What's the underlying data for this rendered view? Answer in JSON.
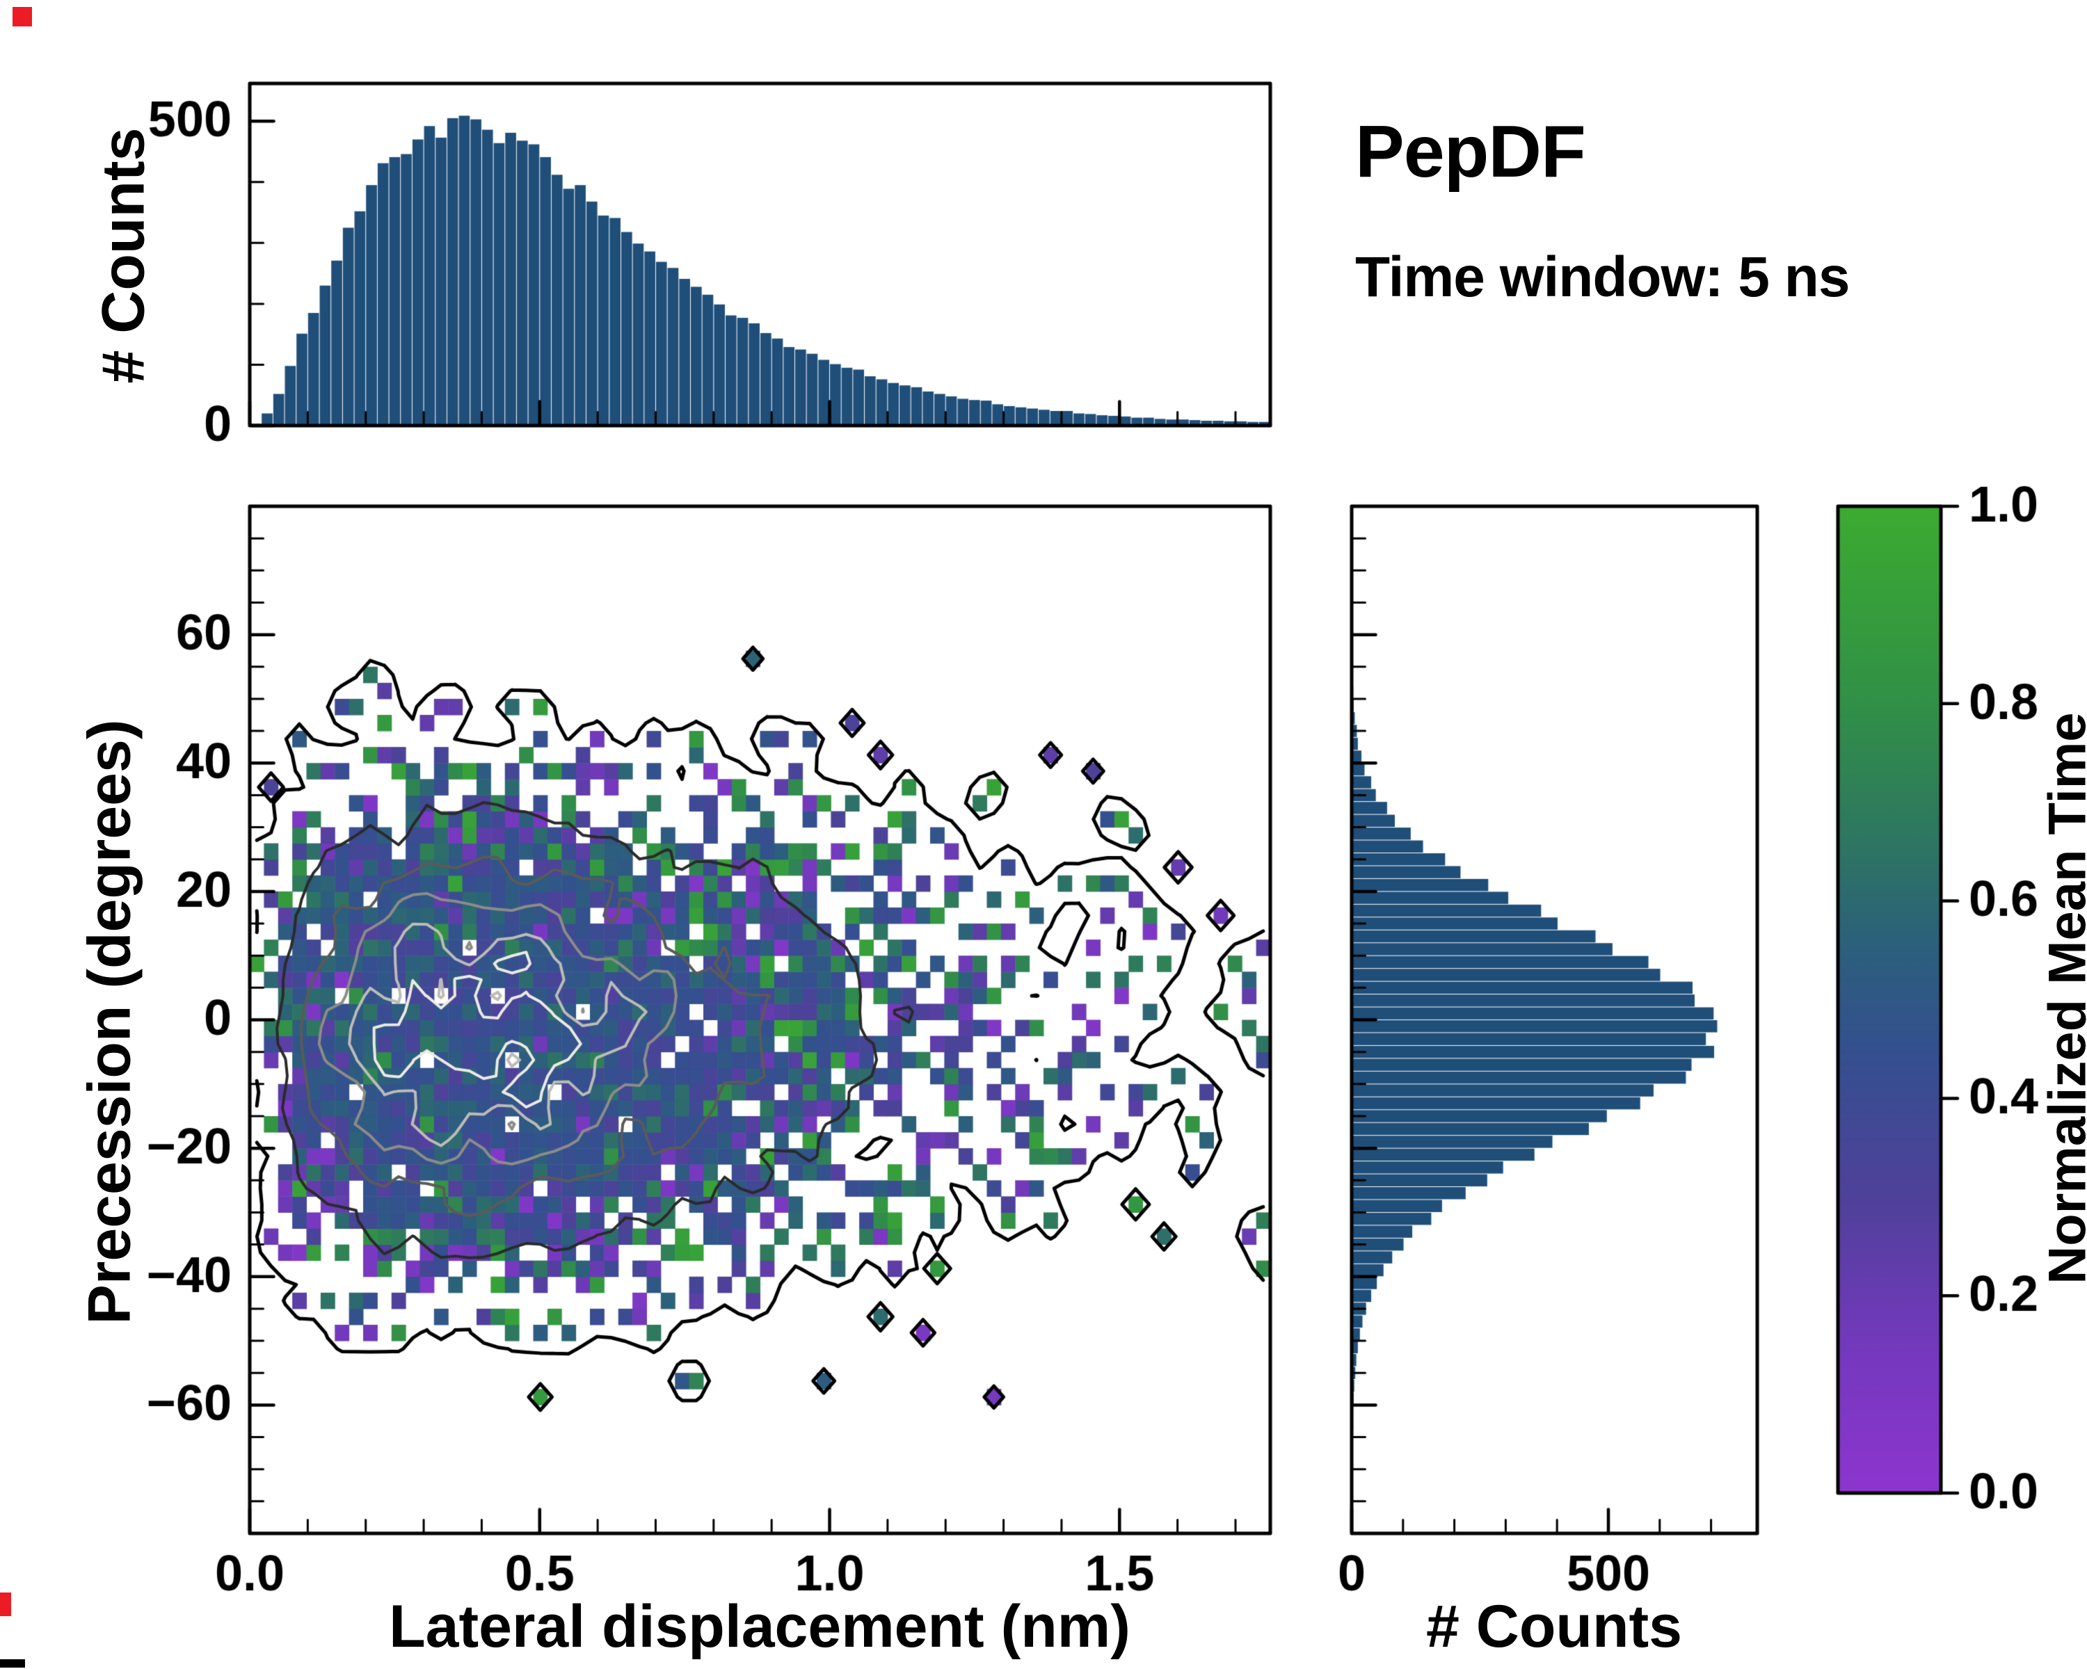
{
  "title": "PepDF",
  "subtitle": "Time window: 5 ns",
  "colors": {
    "hist_bar": "#1f4e79",
    "axis": "#000000",
    "background": "#ffffff"
  },
  "chart_data": {
    "type": "joint-distribution",
    "top_histogram": {
      "type": "bar",
      "ylabel": "# Counts",
      "yticks": [
        0,
        500
      ],
      "ytick_labels": [
        "0",
        "500"
      ],
      "ylim": [
        0,
        562
      ],
      "xlim": [
        0,
        1.76
      ],
      "bin_start": 0,
      "bin_width": 0.02,
      "values": [
        3,
        20,
        52,
        98,
        151,
        185,
        230,
        271,
        325,
        352,
        395,
        431,
        441,
        446,
        470,
        492,
        473,
        505,
        509,
        503,
        486,
        464,
        481,
        468,
        462,
        441,
        412,
        389,
        395,
        368,
        345,
        341,
        318,
        299,
        286,
        269,
        259,
        241,
        228,
        215,
        199,
        181,
        177,
        168,
        152,
        143,
        129,
        125,
        118,
        108,
        101,
        95,
        92,
        81,
        76,
        70,
        66,
        63,
        56,
        52,
        48,
        44,
        42,
        41,
        35,
        32,
        30,
        28,
        26,
        24,
        24,
        20,
        19,
        17,
        16,
        15,
        13,
        13,
        11,
        10,
        10,
        9,
        8,
        8,
        7,
        7,
        6,
        6
      ]
    },
    "joint_heatmap": {
      "type": "heatmap",
      "xlabel": "Lateral displacement (nm)",
      "ylabel": "Precession (degrees)",
      "value_label": "Normalized Mean Time",
      "xlim": [
        0,
        1.76
      ],
      "ylim": [
        -80,
        80
      ],
      "xticks": [
        0,
        0.5,
        1.0,
        1.5
      ],
      "xtick_labels": [
        "0.0",
        "0.5",
        "1.0",
        "1.5"
      ],
      "yticks": [
        -60,
        -40,
        -20,
        0,
        20,
        40,
        60
      ],
      "ytick_labels": [
        "−60",
        "−40",
        "−20",
        "0",
        "20",
        "40",
        "60"
      ],
      "x_minor_step": 0.1,
      "y_minor_step": 5,
      "grid_nx": 72,
      "grid_ny": 64,
      "generator": {
        "seed": 1337,
        "x_mode": 0.36,
        "x_theta": 0.18,
        "y_center": -2,
        "y_sigma": 17,
        "peak_counts_per_cell": 12,
        "occupancy_scale": 0.85,
        "hole_prob": 0.025,
        "core_value_mean": 0.46,
        "core_value_spread": 0.2
      },
      "contours": {
        "levels": [
          0.05,
          1.5,
          4.0,
          6.3,
          8.3,
          9.9
        ],
        "colors": [
          "#000000",
          "#2a2a2a",
          "#5a5a5a",
          "#8c8c88",
          "#bcbcb6",
          "#eceae2"
        ]
      }
    },
    "right_histogram": {
      "type": "bar",
      "orientation": "horizontal",
      "xlabel": "# Counts",
      "xticks": [
        0,
        500
      ],
      "xtick_labels": [
        "0",
        "500"
      ],
      "xlim": [
        0,
        790
      ],
      "ylim": [
        -80,
        80
      ],
      "bin_start": -80,
      "bin_width": 2,
      "values": [
        0,
        0,
        0,
        0,
        1,
        1,
        2,
        2,
        3,
        3,
        4,
        5,
        7,
        9,
        12,
        16,
        21,
        28,
        38,
        49,
        62,
        79,
        101,
        118,
        155,
        176,
        222,
        264,
        295,
        356,
        391,
        462,
        497,
        562,
        588,
        651,
        662,
        706,
        690,
        712,
        705,
        668,
        664,
        601,
        578,
        508,
        475,
        401,
        369,
        305,
        266,
        212,
        182,
        139,
        115,
        84,
        69,
        47,
        38,
        25,
        19,
        12,
        10,
        6,
        4,
        3,
        2,
        1,
        1,
        1,
        0,
        0,
        0,
        0,
        0,
        0,
        0,
        0,
        0,
        0
      ]
    },
    "colorbar": {
      "label": "Normalized Mean Time",
      "range": [
        0,
        1
      ],
      "ticks": [
        "0.0",
        "0.2",
        "0.4",
        "0.6",
        "0.8",
        "1.0"
      ],
      "tick_values": [
        0,
        0.2,
        0.4,
        0.6,
        0.8,
        1.0
      ],
      "stops": [
        [
          0.0,
          "#8d35cf"
        ],
        [
          0.15,
          "#7439bd"
        ],
        [
          0.3,
          "#4f419a"
        ],
        [
          0.45,
          "#34508f"
        ],
        [
          0.55,
          "#2c5f7d"
        ],
        [
          0.65,
          "#2e7464"
        ],
        [
          0.8,
          "#319047"
        ],
        [
          1.0,
          "#3cab31"
        ]
      ]
    }
  }
}
